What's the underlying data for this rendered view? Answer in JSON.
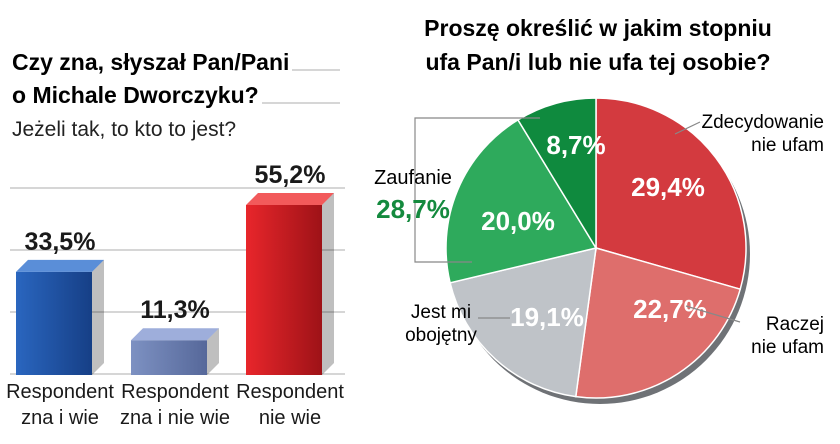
{
  "left_chart": {
    "title_line1": "Czy zna, słyszał Pan/Pani",
    "title_line2": "o Michale Dworczyku?",
    "subtitle": "Jeżeli tak, to kto to jest?"
  },
  "right_chart": {
    "title_line1": "Proszę określić w jakim stopniu",
    "title_line2": "ufa Pan/i lub nie ufa tej osobie?",
    "group_label": "Zaufanie",
    "group_value": "28,7%",
    "label_decydowanie_line1": "Zdecydowanie",
    "label_decydowanie_line2": "nie ufam",
    "label_raczej_line1": "Raczej",
    "label_raczej_line2": "nie ufam",
    "label_obojetny_line1": "Jest mi",
    "label_obojetny_line2": "obojętny"
  },
  "chart_data": [
    {
      "type": "bar",
      "title": "Czy zna, słyszał Pan/Pani o Michale Dworczyku?",
      "subtitle": "Jeżeli tak, to kto to jest?",
      "categories": [
        [
          "Respondent",
          "zna i wie"
        ],
        [
          "Respondent",
          "zna i nie wie"
        ],
        [
          "Respondent",
          "nie wie"
        ]
      ],
      "values": [
        33.5,
        11.3,
        55.2
      ],
      "value_labels": [
        "33,5%",
        "11,3%",
        "55,2%"
      ],
      "colors": [
        "#1f56a8",
        "#6a7fb0",
        "#d42025"
      ],
      "ylim": [
        0,
        60
      ],
      "grid": true
    },
    {
      "type": "pie",
      "title": "Proszę określić w jakim stopniu ufa Pan/i lub nie ufa tej osobie?",
      "slices": [
        {
          "label": "Zdecydowanie nie ufam",
          "value": 29.4,
          "value_label": "29,4%",
          "color": "#d33a3f"
        },
        {
          "label": "Raczej nie ufam",
          "value": 22.7,
          "value_label": "22,7%",
          "color": "#de6e6c"
        },
        {
          "label": "Jest mi obojętny",
          "value": 19.1,
          "value_label": "19,1%",
          "color": "#bfc3c8"
        },
        {
          "label": "",
          "value": 20.0,
          "value_label": "20,0%",
          "color": "#2eaa5c"
        },
        {
          "label": "",
          "value": 8.7,
          "value_label": "8,7%",
          "color": "#0f8a3e"
        }
      ]
    }
  ]
}
